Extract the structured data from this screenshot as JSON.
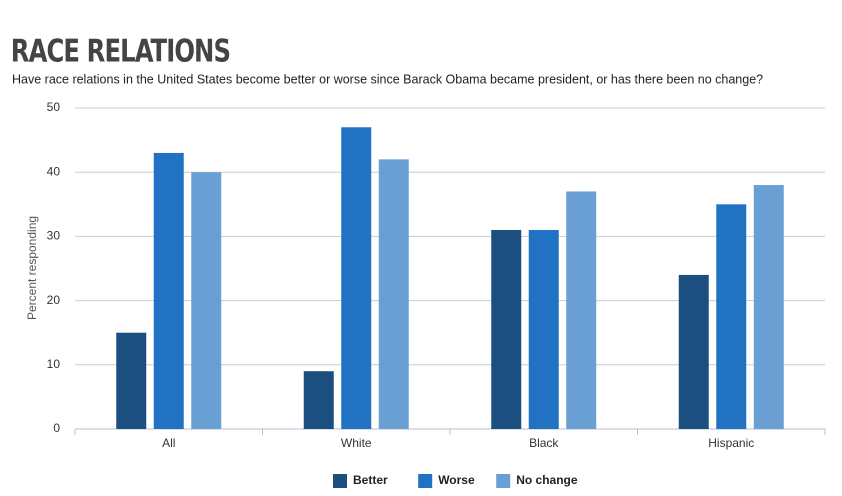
{
  "chart_data": {
    "type": "bar",
    "title": "RACE RELATIONS",
    "subtitle": "Have race relations in the United States become better or worse since Barack Obama became president, or has there been no change?",
    "y_label": "Percent responding",
    "categories": [
      "All",
      "White",
      "Black",
      "Hispanic"
    ],
    "series": [
      {
        "name": "Better",
        "color": "#1a4f80",
        "values": [
          15,
          9,
          31,
          24
        ]
      },
      {
        "name": "Worse",
        "color": "#2272c3",
        "values": [
          43,
          47,
          31,
          35
        ]
      },
      {
        "name": "No change",
        "color": "#6a9fd4",
        "values": [
          40,
          42,
          37,
          38
        ]
      }
    ],
    "ylim": [
      0,
      50
    ],
    "yticks": [
      0,
      10,
      20,
      30,
      40,
      50
    ],
    "grid": true,
    "legend": "bottom"
  }
}
